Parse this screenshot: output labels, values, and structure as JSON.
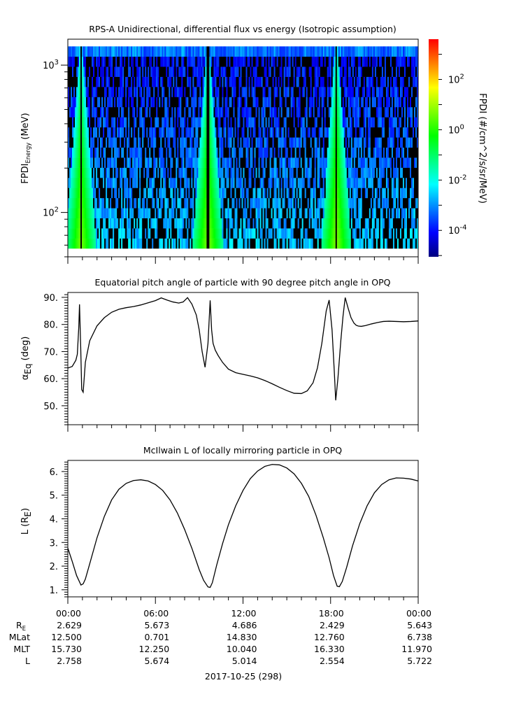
{
  "chart_data": [
    {
      "type": "heatmap",
      "title": "RPS-A Unidirectional, differential flux vs energy (Isotropic assumption)",
      "ylabel_main": "FPDI",
      "ylabel_sub": "Energy",
      "ylabel_unit": " (MeV)",
      "yscale": "log",
      "ylim": [
        50,
        1500
      ],
      "data_ylim": [
        57,
        1340
      ],
      "yticks": [
        {
          "value": 1000,
          "base": "10",
          "exp": "3"
        },
        {
          "value": 100,
          "base": "10",
          "exp": "2"
        }
      ],
      "xlim_hours": [
        0,
        24
      ],
      "colorbar": {
        "label": "FPDI (#/cm^2/s/sr/MeV)",
        "scale": "log",
        "range_log10": [
          -5.05,
          3.6
        ],
        "ticks": [
          {
            "log10": 2,
            "base": "10",
            "exp": "2"
          },
          {
            "log10": 0,
            "base": "10",
            "exp": "0"
          },
          {
            "log10": -2,
            "base": "10",
            "exp": "-2"
          },
          {
            "log10": -4,
            "base": "10",
            "exp": "-4"
          }
        ],
        "colormap": [
          "#00007f",
          "#0000ff",
          "#007fff",
          "#00ffff",
          "#00ff7f",
          "#00ff00",
          "#7fff00",
          "#ffff00",
          "#ff7f00",
          "#ff0000"
        ]
      },
      "energy_channels": 20,
      "time_bins": 250,
      "enhancement_bands_hours": [
        {
          "center": 0.9,
          "peak_log10": 0.7
        },
        {
          "center": 9.6,
          "peak_log10": 0.8
        },
        {
          "center": 18.4,
          "peak_log10": 0.8
        }
      ],
      "fill_colors": {
        "no_data": "#000000"
      }
    },
    {
      "type": "line",
      "title": "Equatorial pitch angle of particle with 90 degree pitch angle in OPQ",
      "ylabel_main": "α",
      "ylabel_sub": "Eq",
      "ylabel_unit": " (deg)",
      "ylim": [
        43,
        91.8
      ],
      "yticks": [
        {
          "value": 90,
          "label": "90."
        },
        {
          "value": 80,
          "label": "80."
        },
        {
          "value": 70,
          "label": "70."
        },
        {
          "value": 60,
          "label": "60."
        },
        {
          "value": 50,
          "label": "50."
        }
      ],
      "xlim_hours": [
        0,
        24
      ],
      "series": [
        {
          "name": "alpha_eq",
          "x": [
            0,
            0.3,
            0.55,
            0.65,
            0.75,
            0.8,
            0.88,
            0.95,
            1.05,
            1.2,
            1.5,
            2.0,
            2.5,
            3.0,
            3.5,
            4.0,
            4.5,
            5.0,
            5.5,
            6.0,
            6.4,
            6.8,
            7.2,
            7.6,
            7.9,
            8.2,
            8.5,
            8.8,
            9.0,
            9.2,
            9.4,
            9.6,
            9.75,
            9.85,
            9.95,
            10.1,
            10.3,
            10.6,
            11.0,
            11.5,
            12.0,
            12.5,
            13.0,
            13.5,
            14.0,
            14.5,
            15.0,
            15.5,
            16.0,
            16.4,
            16.8,
            17.1,
            17.4,
            17.7,
            17.9,
            18.1,
            18.25,
            18.35,
            18.5,
            18.7,
            18.85,
            19.0,
            19.2,
            19.4,
            19.6,
            19.75,
            19.9,
            20.1,
            20.4,
            20.8,
            21.2,
            21.6,
            22.0,
            22.5,
            23.0,
            23.5,
            24.0
          ],
          "y": [
            63.9,
            64.5,
            66.8,
            69.0,
            79.0,
            87.4,
            72.0,
            56.0,
            55.0,
            66.0,
            74.0,
            79.5,
            82.5,
            84.5,
            85.6,
            86.2,
            86.6,
            87.2,
            88.0,
            88.8,
            89.8,
            89.0,
            88.3,
            87.9,
            88.3,
            89.9,
            87.5,
            83.5,
            78.0,
            70.0,
            64.2,
            73.0,
            88.9,
            78.0,
            73.0,
            70.5,
            68.5,
            66.0,
            63.5,
            62.2,
            61.6,
            61.0,
            60.3,
            59.3,
            58.1,
            56.8,
            55.6,
            54.6,
            54.5,
            55.5,
            58.5,
            64.0,
            73.0,
            85.0,
            89.0,
            78.0,
            63.0,
            52.0,
            60.0,
            74.0,
            83.0,
            89.9,
            86.0,
            82.5,
            80.5,
            79.7,
            79.4,
            79.3,
            79.6,
            80.2,
            80.7,
            81.1,
            81.2,
            81.1,
            81.0,
            81.1,
            81.3
          ]
        }
      ]
    },
    {
      "type": "line",
      "title": "McIlwain L of locally mirroring particle in OPQ",
      "ylabel_main": "L (R",
      "ylabel_sub": "E",
      "ylabel_unit": ")",
      "ylim": [
        0.7,
        6.47
      ],
      "yticks": [
        {
          "value": 6,
          "label": "6."
        },
        {
          "value": 5,
          "label": "5."
        },
        {
          "value": 4,
          "label": "4."
        },
        {
          "value": 3,
          "label": "3."
        },
        {
          "value": 2,
          "label": "2."
        },
        {
          "value": 1,
          "label": "1."
        }
      ],
      "xlim_hours": [
        0,
        24
      ],
      "series": [
        {
          "name": "L",
          "x": [
            0,
            0.3,
            0.6,
            0.9,
            1.05,
            1.2,
            1.5,
            2.0,
            2.5,
            3.0,
            3.5,
            4.0,
            4.5,
            5.0,
            5.5,
            6.0,
            6.5,
            7.0,
            7.5,
            8.0,
            8.5,
            9.0,
            9.3,
            9.6,
            9.75,
            9.9,
            10.2,
            10.6,
            11.0,
            11.5,
            12.0,
            12.5,
            13.0,
            13.5,
            14.0,
            14.5,
            15.0,
            15.5,
            16.0,
            16.5,
            17.0,
            17.5,
            17.9,
            18.2,
            18.45,
            18.6,
            18.8,
            19.1,
            19.5,
            20.0,
            20.5,
            21.0,
            21.5,
            22.0,
            22.5,
            23.0,
            23.5,
            24.0
          ],
          "y": [
            2.76,
            2.2,
            1.6,
            1.2,
            1.25,
            1.45,
            2.1,
            3.2,
            4.1,
            4.8,
            5.25,
            5.5,
            5.62,
            5.65,
            5.6,
            5.45,
            5.2,
            4.8,
            4.25,
            3.55,
            2.75,
            1.85,
            1.4,
            1.12,
            1.1,
            1.3,
            2.05,
            2.95,
            3.75,
            4.55,
            5.2,
            5.7,
            6.02,
            6.22,
            6.3,
            6.28,
            6.15,
            5.9,
            5.5,
            4.95,
            4.15,
            3.2,
            2.35,
            1.6,
            1.15,
            1.13,
            1.35,
            1.95,
            2.85,
            3.8,
            4.55,
            5.1,
            5.45,
            5.65,
            5.73,
            5.72,
            5.68,
            5.6
          ]
        }
      ]
    }
  ],
  "x_axis": {
    "tick_labels": [
      "00:00",
      "06:00",
      "12:00",
      "18:00",
      "00:00"
    ],
    "tick_hours": [
      0,
      6,
      12,
      18,
      24
    ],
    "minor_step_hours": 1,
    "row_labels": [
      {
        "main": "R",
        "sub": "E"
      },
      {
        "main": "MLat",
        "sub": ""
      },
      {
        "main": "MLT",
        "sub": ""
      },
      {
        "main": "L",
        "sub": ""
      }
    ],
    "rows": [
      [
        "2.629",
        "5.673",
        "4.686",
        "2.429",
        "5.643"
      ],
      [
        "12.500",
        "0.701",
        "14.830",
        "12.760",
        "6.738"
      ],
      [
        "15.730",
        "12.250",
        "10.040",
        "16.330",
        "11.970"
      ],
      [
        "2.758",
        "5.674",
        "5.014",
        "2.554",
        "5.722"
      ]
    ],
    "date_label": "2017-10-25 (298)"
  }
}
